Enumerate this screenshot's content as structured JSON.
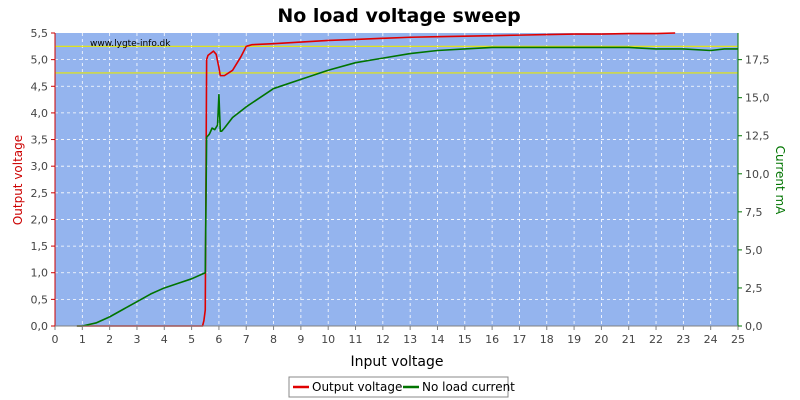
{
  "chart_data": {
    "type": "line",
    "title": "No load voltage sweep",
    "xlabel": "Input voltage",
    "ylabel_left": "Output voltage",
    "ylabel_right": "Current mA",
    "watermark": "www.lygte-info.dk",
    "x_ticks": [
      "0",
      "1",
      "2",
      "3",
      "4",
      "5",
      "6",
      "7",
      "8",
      "9",
      "10",
      "11",
      "12",
      "13",
      "14",
      "15",
      "16",
      "17",
      "18",
      "19",
      "20",
      "21",
      "22",
      "23",
      "24",
      "25"
    ],
    "y_left_ticks": [
      "0,0",
      "0,5",
      "1,0",
      "1,5",
      "2,0",
      "2,5",
      "3,0",
      "3,5",
      "4,0",
      "4,5",
      "5,0",
      "5,5"
    ],
    "y_right_ticks": [
      "0,0",
      "2,5",
      "5,0",
      "7,5",
      "10,0",
      "12,5",
      "15,0",
      "17,5"
    ],
    "xlim": [
      0,
      25
    ],
    "ylim_left": [
      0,
      5.5
    ],
    "ylim_right": [
      0,
      19.25
    ],
    "grid": true,
    "legend_position": "bottom-center",
    "reference_lines_left_axis": [
      4.75,
      5.25
    ],
    "colors": {
      "plot_background": "#94B4EE",
      "output_voltage": "#E00000",
      "no_load_current": "#007400",
      "reference_line": "#E8E800",
      "left_axis": "#CC0000",
      "right_axis": "#007400",
      "grid": "#FFFFFF"
    },
    "series": [
      {
        "name": "Output voltage",
        "axis": "left",
        "x": [
          0.8,
          1.0,
          2.0,
          3.0,
          4.0,
          5.0,
          5.4,
          5.45,
          5.5,
          5.55,
          5.6,
          5.7,
          5.8,
          5.9,
          6.0,
          6.05,
          6.2,
          6.5,
          6.8,
          7.0,
          7.2,
          8.0,
          9.0,
          10.0,
          11.0,
          12.0,
          13.0,
          14.0,
          15.0,
          16.0,
          17.0,
          18.0,
          19.0,
          20.0,
          21.0,
          22.0,
          22.7
        ],
        "y": [
          0.0,
          0.0,
          0.0,
          0.0,
          0.0,
          0.0,
          0.0,
          0.1,
          0.3,
          5.0,
          5.08,
          5.12,
          5.16,
          5.1,
          4.85,
          4.7,
          4.7,
          4.8,
          5.05,
          5.25,
          5.28,
          5.3,
          5.33,
          5.36,
          5.38,
          5.4,
          5.42,
          5.43,
          5.44,
          5.45,
          5.46,
          5.47,
          5.48,
          5.48,
          5.49,
          5.49,
          5.5
        ]
      },
      {
        "name": "No load current",
        "axis": "right",
        "x": [
          0.8,
          1.0,
          1.5,
          2.0,
          2.5,
          3.0,
          3.5,
          4.0,
          4.5,
          5.0,
          5.5,
          5.55,
          5.65,
          5.75,
          5.85,
          5.95,
          6.0,
          6.05,
          6.1,
          6.2,
          6.5,
          7.0,
          7.5,
          8.0,
          9.0,
          10.0,
          11.0,
          12.0,
          13.0,
          14.0,
          15.0,
          16.0,
          17.0,
          18.0,
          19.0,
          20.0,
          21.0,
          22.0,
          23.0,
          24.0,
          24.5,
          25.0
        ],
        "y": [
          0.0,
          0.0,
          0.2,
          0.6,
          1.1,
          1.6,
          2.1,
          2.5,
          2.8,
          3.1,
          3.5,
          12.4,
          12.6,
          13.0,
          12.9,
          13.2,
          15.2,
          12.8,
          12.8,
          13.0,
          13.7,
          14.4,
          15.0,
          15.6,
          16.2,
          16.8,
          17.3,
          17.6,
          17.9,
          18.1,
          18.2,
          18.3,
          18.3,
          18.3,
          18.3,
          18.3,
          18.3,
          18.2,
          18.2,
          18.1,
          18.2,
          18.2
        ]
      }
    ]
  }
}
